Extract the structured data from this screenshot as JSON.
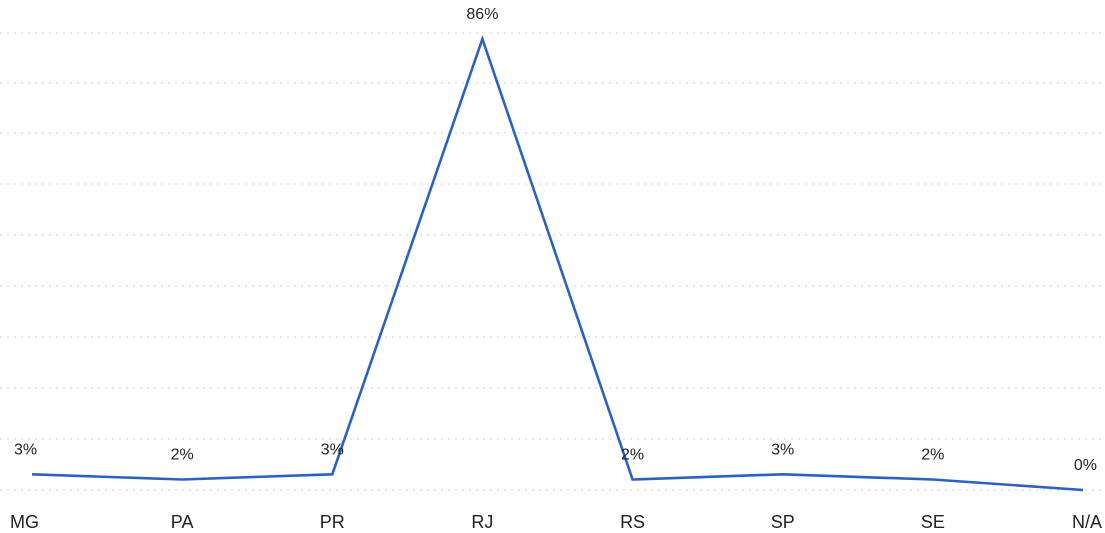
{
  "chart_data": {
    "type": "line",
    "categories": [
      "MG",
      "PA",
      "PR",
      "RJ",
      "RS",
      "SP",
      "SE",
      "N/A"
    ],
    "series": [
      {
        "values": [
          3,
          2,
          3,
          86,
          2,
          3,
          2,
          0
        ],
        "labels": [
          "3%",
          "2%",
          "3%",
          "86%",
          "2%",
          "3%",
          "2%",
          "0%"
        ]
      }
    ],
    "ylim": [
      0,
      90
    ],
    "grid": true,
    "legend": "none",
    "colors": {
      "series": "#2962c4",
      "grid": "#d6d6d6",
      "text": "#222222"
    }
  }
}
